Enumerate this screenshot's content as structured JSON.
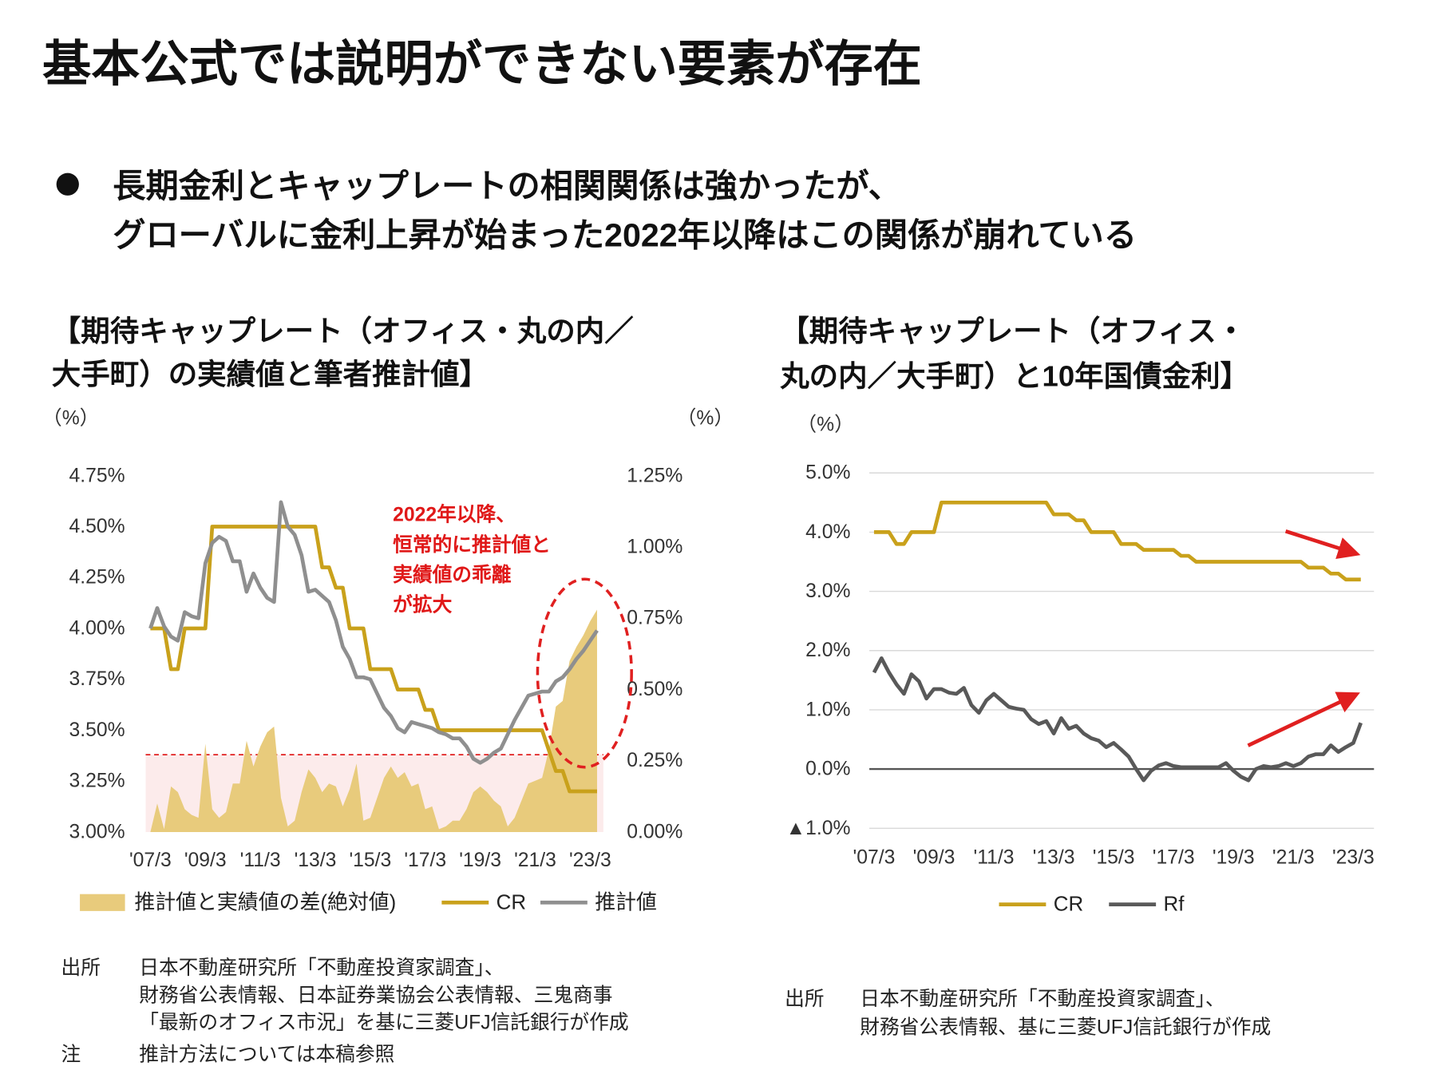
{
  "title": "基本公式では説明ができない要素が存在",
  "bullet": {
    "lines": [
      "長期金利とキャップレートの相関関係は強かったが、",
      "グローバルに金利上昇が始まった2022年以降はこの関係が崩れている"
    ]
  },
  "chart_data": [
    {
      "type": "combo",
      "title_lines": [
        "【期待キャップレート（オフィス・丸の内／",
        "大手町）の実績値と筆者推計値】"
      ],
      "y_unit": "（%）",
      "y2_unit": "（%）",
      "categories": [
        "'07/3",
        null,
        null,
        null,
        null,
        null,
        null,
        null,
        "'09/3",
        null,
        null,
        null,
        null,
        null,
        null,
        null,
        "'11/3",
        null,
        null,
        null,
        null,
        null,
        null,
        null,
        "'13/3",
        null,
        null,
        null,
        null,
        null,
        null,
        null,
        "'15/3",
        null,
        null,
        null,
        null,
        null,
        null,
        null,
        "'17/3",
        null,
        null,
        null,
        null,
        null,
        null,
        null,
        "'19/3",
        null,
        null,
        null,
        null,
        null,
        null,
        null,
        "'21/3",
        null,
        null,
        null,
        null,
        null,
        null,
        null,
        "'23/3",
        null
      ],
      "ylim": [
        3.0,
        4.75
      ],
      "yticks": [
        {
          "value": 3.0,
          "label": "3.00%"
        },
        {
          "value": 3.25,
          "label": "3.25%"
        },
        {
          "value": 3.5,
          "label": "3.50%"
        },
        {
          "value": 3.75,
          "label": "3.75%"
        },
        {
          "value": 4.0,
          "label": "4.00%"
        },
        {
          "value": 4.25,
          "label": "4.25%"
        },
        {
          "value": 4.5,
          "label": "4.50%"
        },
        {
          "value": 4.75,
          "label": "4.75%"
        }
      ],
      "y2lim": [
        0,
        1.25
      ],
      "y2ticks": [
        {
          "value": 0,
          "label": "0.00%"
        },
        {
          "value": 0.25,
          "label": "0.25%"
        },
        {
          "value": 0.5,
          "label": "0.50%"
        },
        {
          "value": 0.75,
          "label": "0.75%"
        },
        {
          "value": 1.0,
          "label": "1.00%"
        },
        {
          "value": 1.25,
          "label": "1.25%"
        }
      ],
      "grid": false,
      "ref_line": 3.38,
      "ref_color": "#e02020",
      "series": [
        {
          "name": "推計値と実績値の差(絶対値)",
          "type": "area",
          "axis": "y2",
          "color": "#e8cb7c",
          "values": [
            0,
            0.1,
            0.01,
            0.16,
            0.14,
            0.08,
            0.06,
            0.05,
            0.31,
            0.08,
            0.05,
            0.07,
            0.17,
            0.17,
            0.32,
            0.23,
            0.3,
            0.35,
            0.37,
            0.12,
            0.02,
            0.04,
            0.14,
            0.22,
            0.19,
            0.14,
            0.17,
            0.16,
            0.09,
            0.15,
            0.24,
            0.04,
            0.05,
            0.12,
            0.19,
            0.23,
            0.19,
            0.21,
            0.16,
            0.17,
            0.08,
            0.09,
            0.01,
            0.02,
            0.04,
            0.04,
            0.08,
            0.14,
            0.16,
            0.14,
            0.11,
            0.09,
            0.02,
            0.05,
            0.11,
            0.17,
            0.18,
            0.19,
            0.29,
            0.44,
            0.46,
            0.6,
            0.65,
            0.69,
            0.74,
            0.78
          ]
        },
        {
          "name": "CR",
          "type": "line",
          "color": "#c9a11b",
          "values": [
            4.0,
            4.0,
            4.0,
            3.8,
            3.8,
            4.0,
            4.0,
            4.0,
            4.0,
            4.5,
            4.5,
            4.5,
            4.5,
            4.5,
            4.5,
            4.5,
            4.5,
            4.5,
            4.5,
            4.5,
            4.5,
            4.5,
            4.5,
            4.5,
            4.5,
            4.3,
            4.3,
            4.2,
            4.2,
            4.0,
            4.0,
            4.0,
            3.8,
            3.8,
            3.8,
            3.8,
            3.7,
            3.7,
            3.7,
            3.7,
            3.6,
            3.6,
            3.5,
            3.5,
            3.5,
            3.5,
            3.5,
            3.5,
            3.5,
            3.5,
            3.5,
            3.5,
            3.5,
            3.5,
            3.5,
            3.5,
            3.5,
            3.5,
            3.4,
            3.3,
            3.3,
            3.2,
            3.2,
            3.2,
            3.2,
            3.2
          ]
        },
        {
          "name": "推計値",
          "type": "line",
          "color": "#8f8f8f",
          "values": [
            4.0,
            4.1,
            4.01,
            3.96,
            3.94,
            4.08,
            4.06,
            4.05,
            4.32,
            4.42,
            4.45,
            4.43,
            4.33,
            4.33,
            4.18,
            4.27,
            4.2,
            4.15,
            4.13,
            4.62,
            4.5,
            4.46,
            4.36,
            4.18,
            4.19,
            4.16,
            4.13,
            4.04,
            3.91,
            3.85,
            3.76,
            3.76,
            3.75,
            3.68,
            3.61,
            3.57,
            3.51,
            3.49,
            3.54,
            3.53,
            3.52,
            3.51,
            3.49,
            3.48,
            3.46,
            3.46,
            3.42,
            3.36,
            3.34,
            3.36,
            3.39,
            3.41,
            3.48,
            3.55,
            3.61,
            3.67,
            3.68,
            3.69,
            3.69,
            3.74,
            3.76,
            3.8,
            3.85,
            3.89,
            3.94,
            3.99
          ]
        }
      ],
      "annotation_lines": [
        "2022年以降、",
        "恒常的に推計値と",
        "実績値の乖離",
        "が拡大"
      ],
      "source_label": "出所",
      "source_lines": [
        "日本不動産研究所「不動産投資家調査」、",
        "財務省公表情報、日本証券業協会公表情報、三鬼商事",
        "「最新のオフィス市況」を基に三菱UFJ信託銀行が作成"
      ],
      "note_label": "注",
      "note_lines": [
        "推計方法については本稿参照"
      ]
    },
    {
      "type": "line",
      "title_lines": [
        "【期待キャップレート（オフィス・",
        "丸の内／大手町）と10年国債金利】"
      ],
      "y_unit": "（%）",
      "categories": [
        "'07/3",
        null,
        null,
        null,
        null,
        null,
        null,
        null,
        "'09/3",
        null,
        null,
        null,
        null,
        null,
        null,
        null,
        "'11/3",
        null,
        null,
        null,
        null,
        null,
        null,
        null,
        "'13/3",
        null,
        null,
        null,
        null,
        null,
        null,
        null,
        "'15/3",
        null,
        null,
        null,
        null,
        null,
        null,
        null,
        "'17/3",
        null,
        null,
        null,
        null,
        null,
        null,
        null,
        "'19/3",
        null,
        null,
        null,
        null,
        null,
        null,
        null,
        "'21/3",
        null,
        null,
        null,
        null,
        null,
        null,
        null,
        "'23/3",
        null
      ],
      "ylim": [
        -1.0,
        5.0
      ],
      "yticks": [
        {
          "value": -1.0,
          "label": "▲1.0%"
        },
        {
          "value": 0,
          "label": "0.0%"
        },
        {
          "value": 1.0,
          "label": "1.0%"
        },
        {
          "value": 2.0,
          "label": "2.0%"
        },
        {
          "value": 3.0,
          "label": "3.0%"
        },
        {
          "value": 4.0,
          "label": "4.0%"
        },
        {
          "value": 5.0,
          "label": "5.0%"
        }
      ],
      "grid": true,
      "series": [
        {
          "name": "CR",
          "type": "line",
          "color": "#c9a11b",
          "values": [
            4.0,
            4.0,
            4.0,
            3.8,
            3.8,
            4.0,
            4.0,
            4.0,
            4.0,
            4.5,
            4.5,
            4.5,
            4.5,
            4.5,
            4.5,
            4.5,
            4.5,
            4.5,
            4.5,
            4.5,
            4.5,
            4.5,
            4.5,
            4.5,
            4.3,
            4.3,
            4.3,
            4.2,
            4.2,
            4.0,
            4.0,
            4.0,
            4.0,
            3.8,
            3.8,
            3.8,
            3.7,
            3.7,
            3.7,
            3.7,
            3.7,
            3.6,
            3.6,
            3.5,
            3.5,
            3.5,
            3.5,
            3.5,
            3.5,
            3.5,
            3.5,
            3.5,
            3.5,
            3.5,
            3.5,
            3.5,
            3.5,
            3.5,
            3.4,
            3.4,
            3.4,
            3.3,
            3.3,
            3.2,
            3.2,
            3.2
          ]
        },
        {
          "name": "Rf",
          "type": "line",
          "color": "#595959",
          "values": [
            1.63,
            1.87,
            1.63,
            1.43,
            1.27,
            1.6,
            1.48,
            1.19,
            1.35,
            1.35,
            1.29,
            1.27,
            1.37,
            1.08,
            0.95,
            1.16,
            1.27,
            1.16,
            1.05,
            1.02,
            1.0,
            0.84,
            0.76,
            0.81,
            0.6,
            0.86,
            0.68,
            0.73,
            0.6,
            0.52,
            0.48,
            0.37,
            0.44,
            0.33,
            0.21,
            0.0,
            -0.19,
            -0.03,
            0.06,
            0.1,
            0.05,
            0.03,
            0.03,
            0.03,
            0.03,
            0.03,
            0.03,
            0.1,
            -0.03,
            -0.13,
            -0.19,
            0.0,
            0.05,
            0.03,
            0.05,
            0.1,
            0.05,
            0.1,
            0.21,
            0.25,
            0.25,
            0.4,
            0.29,
            0.37,
            0.44,
            0.78
          ]
        }
      ],
      "source_label": "出所",
      "source_lines": [
        "日本不動産研究所「不動産投資家調査」、",
        "財務省公表情報、基に三菱UFJ信託銀行が作成"
      ]
    }
  ]
}
